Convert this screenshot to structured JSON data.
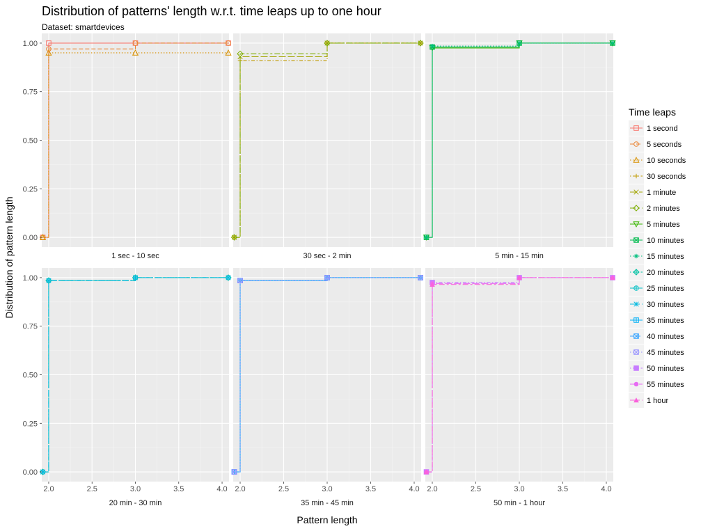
{
  "chart_data": {
    "type": "line",
    "title": "Distribution of patterns' length w.r.t. time leaps up to one hour",
    "subtitle": "Dataset: smartdevices",
    "xlabel": "Pattern length",
    "ylabel": "Distribution of pattern length",
    "xlim": [
      1.92,
      4.08
    ],
    "ylim": [
      -0.05,
      1.05
    ],
    "x_ticks": [
      "2.0",
      "2.5",
      "3.0",
      "3.5",
      "4.0"
    ],
    "y_ticks": [
      "0.00",
      "0.25",
      "0.50",
      "0.75",
      "1.00"
    ],
    "grid": true,
    "step": true,
    "legend": {
      "title": "Time leaps",
      "position": "right",
      "entries": [
        {
          "name": "1 second",
          "color": "#F8766D",
          "shape": "square-open",
          "dash": "solid"
        },
        {
          "name": "5 seconds",
          "color": "#EA8331",
          "shape": "circle-open",
          "dash": "dashed"
        },
        {
          "name": "10 seconds",
          "color": "#D89000",
          "shape": "triangle-open",
          "dash": "dotted"
        },
        {
          "name": "30 seconds",
          "color": "#C09B00",
          "shape": "plus",
          "dash": "dotdash"
        },
        {
          "name": "1 minute",
          "color": "#A3A500",
          "shape": "cross",
          "dash": "longdash"
        },
        {
          "name": "2 minutes",
          "color": "#7CAE00",
          "shape": "diamond-open",
          "dash": "twodash"
        },
        {
          "name": "5 minutes",
          "color": "#39B600",
          "shape": "triangle-down",
          "dash": "solid"
        },
        {
          "name": "10 minutes",
          "color": "#00BB4E",
          "shape": "square-cross",
          "dash": "solid"
        },
        {
          "name": "15 minutes",
          "color": "#00BF7D",
          "shape": "asterisk",
          "dash": "dotted"
        },
        {
          "name": "20 minutes",
          "color": "#00C1A3",
          "shape": "diamond-plus",
          "dash": "dotdash"
        },
        {
          "name": "25 minutes",
          "color": "#00BFC4",
          "shape": "circle-plus",
          "dash": "longdash"
        },
        {
          "name": "30 minutes",
          "color": "#00BAE0",
          "shape": "star",
          "dash": "twodash"
        },
        {
          "name": "35 minutes",
          "color": "#00B0F6",
          "shape": "square-plus",
          "dash": "solid"
        },
        {
          "name": "40 minutes",
          "color": "#35A2FF",
          "shape": "square-cross",
          "dash": "dashed"
        },
        {
          "name": "45 minutes",
          "color": "#9590FF",
          "shape": "square-x",
          "dash": "dotted"
        },
        {
          "name": "50 minutes",
          "color": "#C77CFF",
          "shape": "square-filled",
          "dash": "dotdash"
        },
        {
          "name": "55 minutes",
          "color": "#E76BF3",
          "shape": "circle-filled",
          "dash": "longdash"
        },
        {
          "name": "1 hour",
          "color": "#FA62DB",
          "shape": "triangle-filled",
          "dash": "twodash"
        }
      ]
    },
    "panels": [
      {
        "label": "1 sec - 10 sec",
        "show_x_ticks": false,
        "series": [
          {
            "name": "1 second",
            "x": [
              1.92,
              2,
              3,
              4.08
            ],
            "y": [
              0,
              1.0,
              1.0,
              1.0
            ]
          },
          {
            "name": "5 seconds",
            "x": [
              1.92,
              2,
              3,
              4.08
            ],
            "y": [
              0,
              0.97,
              1.0,
              1.0
            ]
          },
          {
            "name": "10 seconds",
            "x": [
              1.92,
              2,
              3,
              4.08
            ],
            "y": [
              0,
              0.95,
              0.95,
              0.95
            ]
          }
        ]
      },
      {
        "label": "30 sec - 2 min",
        "show_x_ticks": false,
        "series": [
          {
            "name": "30 seconds",
            "x": [
              1.92,
              2,
              3,
              4.08
            ],
            "y": [
              0,
              0.91,
              1.0,
              1.0
            ]
          },
          {
            "name": "1 minute",
            "x": [
              1.92,
              2,
              3,
              4.08
            ],
            "y": [
              0,
              0.93,
              1.0,
              1.0
            ]
          },
          {
            "name": "2 minutes",
            "x": [
              1.92,
              2,
              3,
              4.08
            ],
            "y": [
              0,
              0.945,
              1.0,
              1.0
            ]
          }
        ]
      },
      {
        "label": "5 min - 15 min",
        "show_x_ticks": false,
        "series": [
          {
            "name": "5 minutes",
            "x": [
              1.92,
              2,
              3,
              4.08
            ],
            "y": [
              0,
              0.975,
              1.0,
              1.0
            ]
          },
          {
            "name": "10 minutes",
            "x": [
              1.92,
              2,
              3,
              4.08
            ],
            "y": [
              0,
              0.98,
              1.0,
              1.0
            ]
          },
          {
            "name": "15 minutes",
            "x": [
              1.92,
              2,
              3,
              4.08
            ],
            "y": [
              0,
              0.985,
              1.0,
              1.0
            ]
          }
        ]
      },
      {
        "label": "20 min - 30 min",
        "show_x_ticks": true,
        "series": [
          {
            "name": "20 minutes",
            "x": [
              1.92,
              2,
              3,
              4.08
            ],
            "y": [
              0,
              0.985,
              1.0,
              1.0
            ]
          },
          {
            "name": "25 minutes",
            "x": [
              1.92,
              2,
              3,
              4.08
            ],
            "y": [
              0,
              0.985,
              1.0,
              1.0
            ]
          },
          {
            "name": "30 minutes",
            "x": [
              1.92,
              2,
              3,
              4.08
            ],
            "y": [
              0,
              0.985,
              1.0,
              1.0
            ]
          }
        ]
      },
      {
        "label": "35 min - 45 min",
        "show_x_ticks": true,
        "series": [
          {
            "name": "35 minutes",
            "x": [
              1.92,
              2,
              3,
              4.08
            ],
            "y": [
              0,
              0.985,
              1.0,
              1.0
            ]
          },
          {
            "name": "40 minutes",
            "x": [
              1.92,
              2,
              3,
              4.08
            ],
            "y": [
              0,
              0.985,
              1.0,
              1.0
            ]
          },
          {
            "name": "45 minutes",
            "x": [
              1.92,
              2,
              3,
              4.08
            ],
            "y": [
              0,
              0.985,
              1.0,
              1.0
            ]
          }
        ]
      },
      {
        "label": "50 min - 1 hour",
        "show_x_ticks": true,
        "series": [
          {
            "name": "50 minutes",
            "x": [
              1.92,
              2,
              3,
              4.08
            ],
            "y": [
              0,
              0.975,
              1.0,
              1.0
            ]
          },
          {
            "name": "55 minutes",
            "x": [
              1.92,
              2,
              3,
              4.08
            ],
            "y": [
              0,
              0.97,
              1.0,
              1.0
            ]
          },
          {
            "name": "1 hour",
            "x": [
              1.92,
              2,
              3,
              4.08
            ],
            "y": [
              0,
              0.965,
              1.0,
              1.0
            ]
          }
        ]
      }
    ]
  }
}
